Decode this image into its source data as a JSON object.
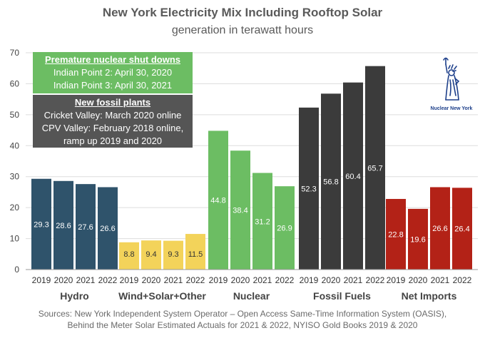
{
  "chart_data": {
    "type": "bar",
    "title": "New York Electricity Mix Including Rooftop Solar",
    "subtitle": "generation in terawatt hours",
    "ylim": [
      0,
      70
    ],
    "yticks": [
      0,
      10,
      20,
      30,
      40,
      50,
      60,
      70
    ],
    "years": [
      "2019",
      "2020",
      "2021",
      "2022"
    ],
    "grid": true,
    "groups": [
      {
        "name": "Hydro",
        "color": "#2f536b",
        "values": [
          29.3,
          28.6,
          27.6,
          26.6
        ]
      },
      {
        "name": "Wind+Solar+Other",
        "color": "#f3d35a",
        "values": [
          8.8,
          9.4,
          9.3,
          11.5
        ]
      },
      {
        "name": "Nuclear",
        "color": "#6cbd63",
        "values": [
          44.8,
          38.4,
          31.2,
          26.9
        ]
      },
      {
        "name": "Fossil Fuels",
        "color": "#3b3b3b",
        "values": [
          52.3,
          56.8,
          60.4,
          65.7
        ]
      },
      {
        "name": "Net Imports",
        "color": "#b32217",
        "values": [
          22.8,
          19.6,
          26.6,
          26.4
        ]
      }
    ],
    "label_colors": {
      "dark": "#ffffff",
      "light": "#333333"
    }
  },
  "annotations": {
    "nuclear": {
      "heading": "Premature nuclear shut downs",
      "lines": [
        "Indian Point 2: April 30, 2020",
        "Indian Point 3: April 30, 2021"
      ]
    },
    "fossil": {
      "heading": "New fossil plants",
      "lines": [
        "Cricket Valley: March 2020 online",
        "CPV Valley: February 2018 online,",
        "ramp up 2019 and 2020"
      ]
    }
  },
  "logo": {
    "text": "Nuclear New York",
    "icon": "statue-of-liberty-icon"
  },
  "sources": [
    "Sources: New York Independent System Operator – Open Access Same-Time Information System (OASIS),",
    "Behind the Meter Solar Estimated Actuals for 2021 & 2022, NYISO Gold Books 2019 & 2020"
  ]
}
